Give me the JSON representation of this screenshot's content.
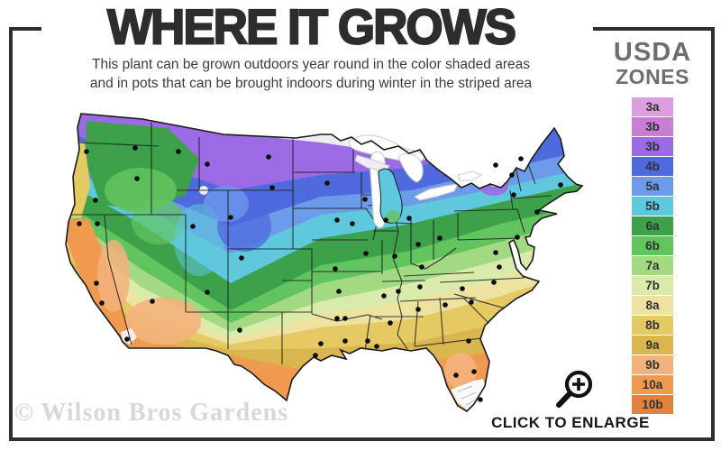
{
  "header": {
    "title": "WHERE IT GROWS",
    "subtitle_line1": "This plant can be grown outdoors year round in the color shaded areas",
    "subtitle_line2": "and in pots that can be brought indoors during winter in the striped area"
  },
  "legend": {
    "title_line1": "USDA",
    "title_line2": "ZONES",
    "zones": [
      {
        "label": "3a",
        "color": "#dd9ee0"
      },
      {
        "label": "3b",
        "color": "#c77fd4"
      },
      {
        "label": "3b",
        "color": "#9b6ae4"
      },
      {
        "label": "4b",
        "color": "#4f6add"
      },
      {
        "label": "5a",
        "color": "#6c9ce9"
      },
      {
        "label": "5b",
        "color": "#5fc8dd"
      },
      {
        "label": "6a",
        "color": "#3da14c"
      },
      {
        "label": "6b",
        "color": "#62c45f"
      },
      {
        "label": "7a",
        "color": "#a4d984"
      },
      {
        "label": "7b",
        "color": "#d9ebaa"
      },
      {
        "label": "8a",
        "color": "#ede2a0"
      },
      {
        "label": "8b",
        "color": "#e5c963"
      },
      {
        "label": "9a",
        "color": "#d9b650"
      },
      {
        "label": "9b",
        "color": "#f3b27c"
      },
      {
        "label": "10a",
        "color": "#ef9a4f"
      },
      {
        "label": "10b",
        "color": "#e2833b"
      }
    ]
  },
  "map": {
    "description": "USDA hardiness zone map of the continental United States",
    "band_colors_north_to_south": [
      "#9b6ae4",
      "#4f6add",
      "#6c9ce9",
      "#5fc8dd",
      "#3da14c",
      "#62c45f",
      "#a4d984",
      "#d9ebaa",
      "#ede2a0",
      "#e5c963",
      "#d9b650",
      "#f3b27c",
      "#ef9a4f"
    ],
    "coldest_area_color": "#ededed",
    "striped_area_color": "#fafafa",
    "city_dots": [
      [
        94,
        48
      ],
      [
        40,
        52
      ],
      [
        50,
        106
      ],
      [
        96,
        82
      ],
      [
        142,
        52
      ],
      [
        174,
        66
      ],
      [
        242,
        58
      ],
      [
        246,
        92
      ],
      [
        200,
        125
      ],
      [
        212,
        170
      ],
      [
        158,
        135
      ],
      [
        32,
        132
      ],
      [
        52,
        132
      ],
      [
        51,
        198
      ],
      [
        57,
        220
      ],
      [
        85,
        260
      ],
      [
        113,
        218
      ],
      [
        174,
        208
      ],
      [
        210,
        250
      ],
      [
        307,
        87
      ],
      [
        349,
        105
      ],
      [
        372,
        128
      ],
      [
        398,
        126
      ],
      [
        335,
        132
      ],
      [
        318,
        128
      ],
      [
        350,
        165
      ],
      [
        382,
        168
      ],
      [
        408,
        155
      ],
      [
        432,
        148
      ],
      [
        412,
        180
      ],
      [
        410,
        202
      ],
      [
        386,
        207
      ],
      [
        370,
        212
      ],
      [
        320,
        207
      ],
      [
        316,
        182
      ],
      [
        318,
        237
      ],
      [
        327,
        237
      ],
      [
        300,
        265
      ],
      [
        327,
        262
      ],
      [
        294,
        278
      ],
      [
        352,
        262
      ],
      [
        362,
        268
      ],
      [
        377,
        242
      ],
      [
        408,
        227
      ],
      [
        438,
        222
      ],
      [
        467,
        219
      ],
      [
        457,
        204
      ],
      [
        492,
        197
      ],
      [
        498,
        180
      ],
      [
        494,
        164
      ],
      [
        518,
        147
      ],
      [
        540,
        119
      ],
      [
        514,
        100
      ],
      [
        494,
        67
      ],
      [
        512,
        78
      ],
      [
        522,
        60
      ],
      [
        566,
        89
      ],
      [
        464,
        262
      ],
      [
        470,
        296
      ],
      [
        450,
        300
      ],
      [
        477,
        327
      ]
    ]
  },
  "footer": {
    "watermark": "© Wilson Bros Gardens",
    "enlarge_label": "CLICK TO ENLARGE"
  },
  "icons": {
    "magnifier": "magnifier-plus-icon"
  }
}
